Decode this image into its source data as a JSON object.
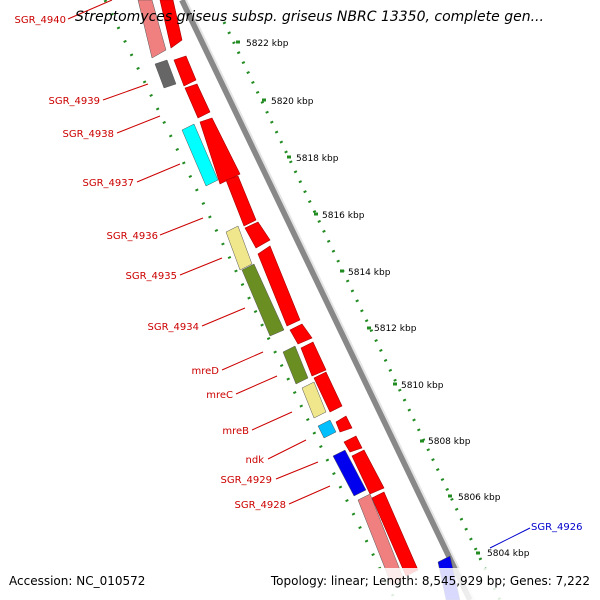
{
  "title": "Streptomyces griseus subsp. griseus NBRC 13350, complete gen...",
  "footer": {
    "accession": "Accession: NC_010572",
    "topology": "Topology: linear; Length: 8,545,929 bp; Genes: 7,222"
  },
  "colors": {
    "label_red": "#cc0000",
    "label_blue": "#0000cc",
    "gene_red": "#ff0000",
    "axis": "#999999",
    "tick": "#228b22"
  },
  "scale_labels": [
    "5822 kbp",
    "5820 kbp",
    "5818 kbp",
    "5816 kbp",
    "5814 kbp",
    "5812 kbp",
    "5810 kbp",
    "5808 kbp",
    "5806 kbp",
    "5804 kbp"
  ],
  "gene_labels": [
    {
      "name": "SGR_4940",
      "color": "red"
    },
    {
      "name": "SGR_4939",
      "color": "red"
    },
    {
      "name": "SGR_4938",
      "color": "red"
    },
    {
      "name": "SGR_4937",
      "color": "red"
    },
    {
      "name": "SGR_4936",
      "color": "red"
    },
    {
      "name": "SGR_4935",
      "color": "red"
    },
    {
      "name": "SGR_4934",
      "color": "red"
    },
    {
      "name": "mreD",
      "color": "red"
    },
    {
      "name": "mreC",
      "color": "red"
    },
    {
      "name": "mreB",
      "color": "red"
    },
    {
      "name": "ndk",
      "color": "red"
    },
    {
      "name": "SGR_4929",
      "color": "red"
    },
    {
      "name": "SGR_4928",
      "color": "red"
    },
    {
      "name": "SGR_4926",
      "color": "blue"
    }
  ]
}
